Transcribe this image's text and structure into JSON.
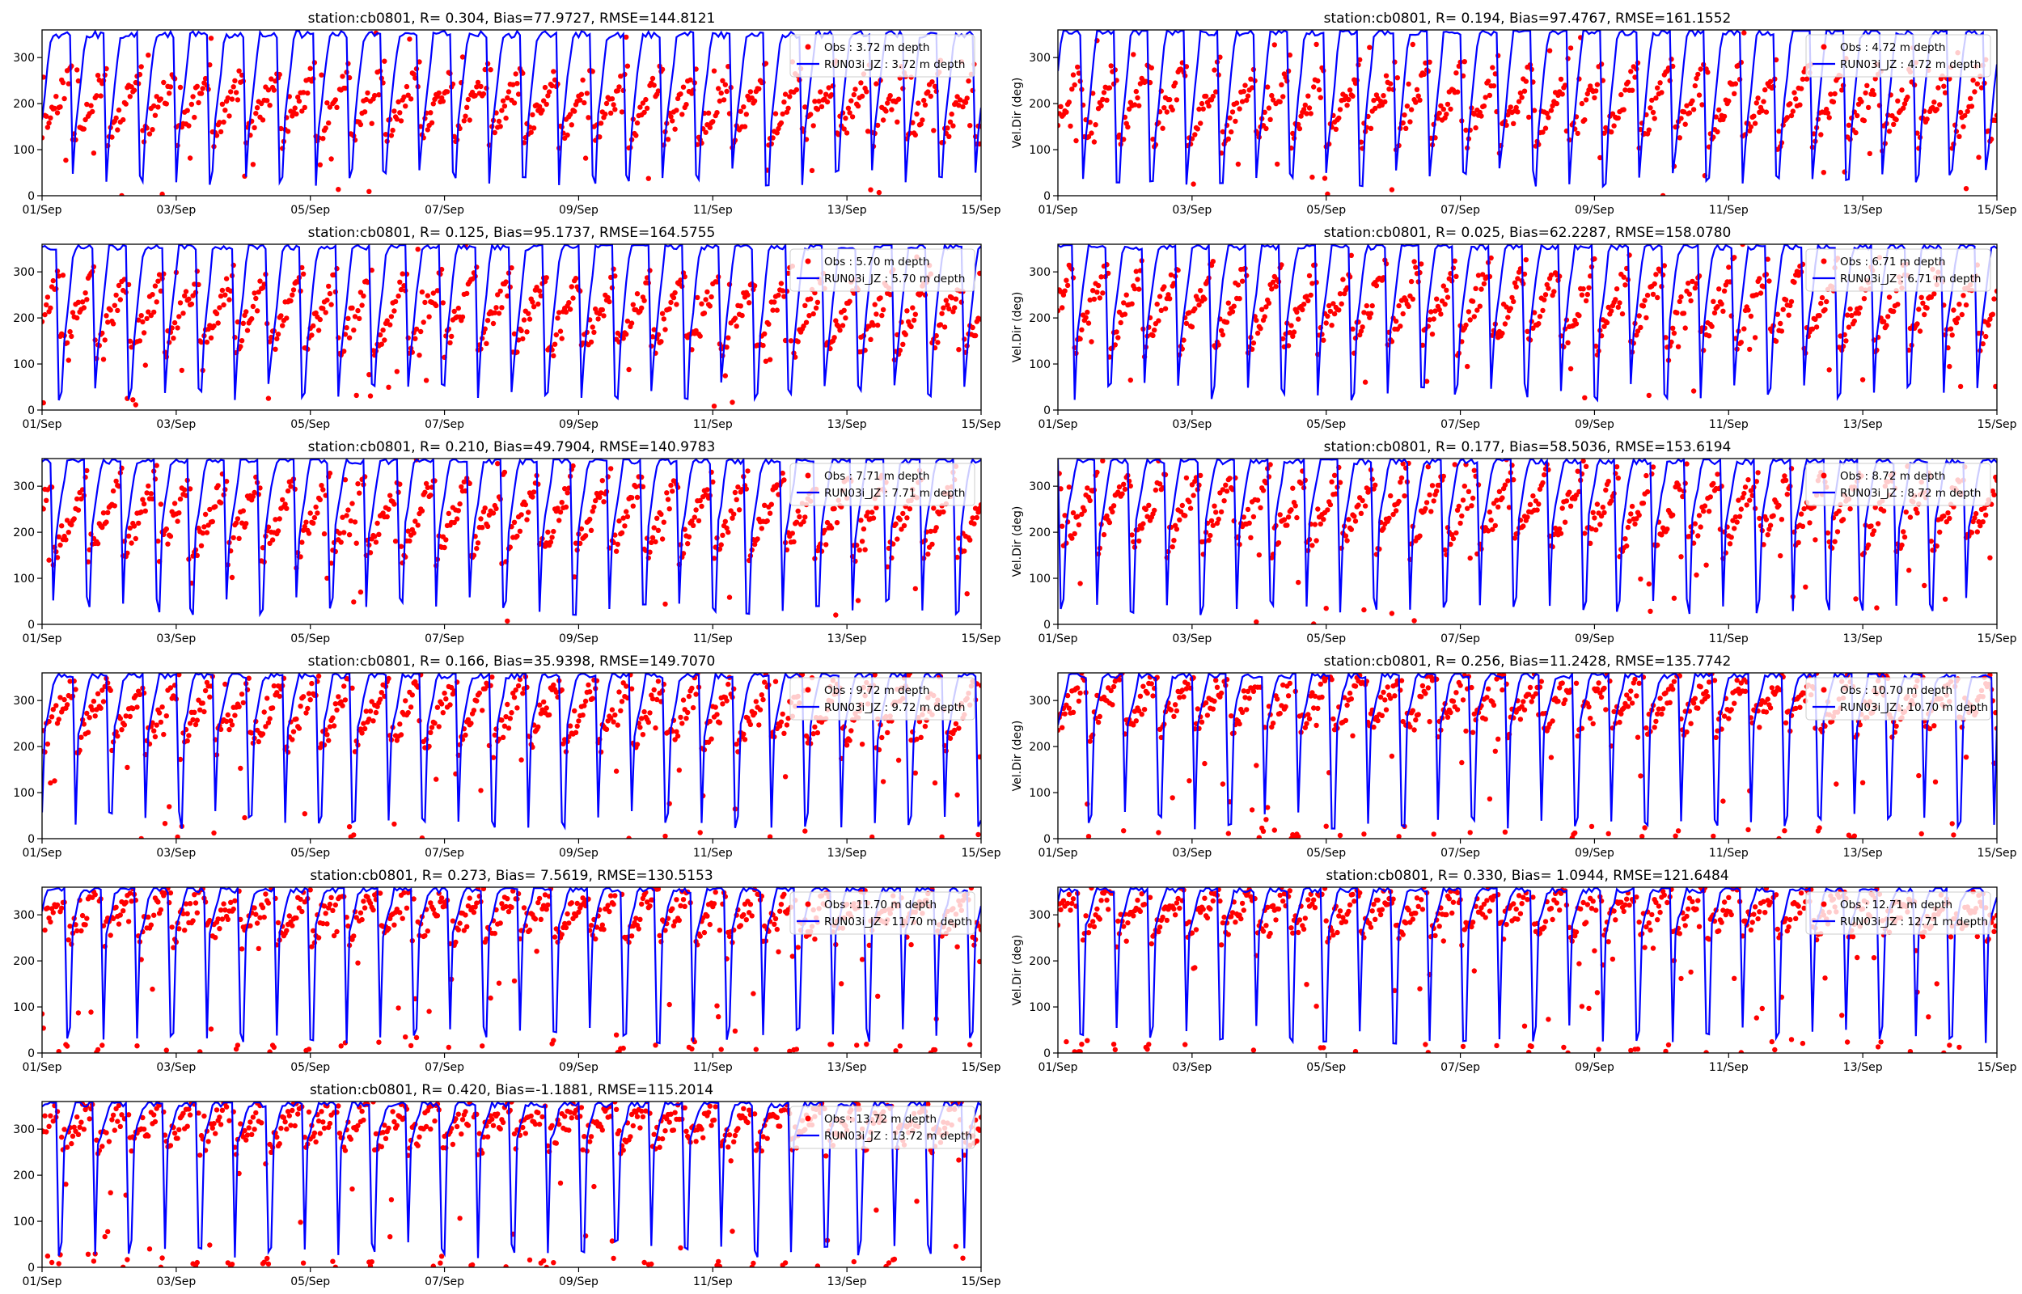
{
  "figure": {
    "colors": {
      "obs": "#ff0000",
      "model": "#0000ff",
      "axis": "#000000",
      "legend_border": "#cccccc"
    }
  },
  "chart_data": [
    {
      "type": "scatter+line",
      "title": "station:cb0801, R= 0.304, Bias=77.9727, RMSE=144.8121",
      "ylabel": "",
      "ylim": [
        0,
        360
      ],
      "yticks": [
        "0",
        "100",
        "200",
        "300"
      ],
      "xticks": [
        "01/Sep",
        "03/Sep",
        "05/Sep",
        "07/Sep",
        "09/Sep",
        "11/Sep",
        "13/Sep",
        "15/Sep"
      ],
      "xlim_days": [
        0,
        14
      ],
      "legend": {
        "placement": "upper right",
        "obs": "Obs : 3.72 m depth",
        "model": "RUN03i_JZ : 3.72 m depth"
      },
      "pattern": {
        "obs_base": 120,
        "obs_amp": 150,
        "model_low": 120,
        "model_high": 350,
        "seed": 11
      }
    },
    {
      "type": "scatter+line",
      "title": "station:cb0801, R= 0.194, Bias=97.4767, RMSE=161.1552",
      "ylabel": "Vel.Dir (deg)",
      "ylim": [
        0,
        360
      ],
      "yticks": [
        "0",
        "100",
        "200",
        "300"
      ],
      "xticks": [
        "01/Sep",
        "03/Sep",
        "05/Sep",
        "07/Sep",
        "09/Sep",
        "11/Sep",
        "13/Sep",
        "15/Sep"
      ],
      "xlim_days": [
        0,
        14
      ],
      "legend": {
        "placement": "upper right",
        "obs": "Obs : 4.72 m depth",
        "model": "RUN03i_JZ : 4.72 m depth"
      },
      "pattern": {
        "obs_base": 120,
        "obs_amp": 160,
        "model_low": 100,
        "model_high": 355,
        "seed": 23
      }
    },
    {
      "type": "scatter+line",
      "title": "station:cb0801, R= 0.125, Bias=95.1737, RMSE=164.5755",
      "ylabel": "",
      "ylim": [
        0,
        360
      ],
      "yticks": [
        "0",
        "100",
        "200",
        "300"
      ],
      "xticks": [
        "01/Sep",
        "03/Sep",
        "05/Sep",
        "07/Sep",
        "09/Sep",
        "11/Sep",
        "13/Sep",
        "15/Sep"
      ],
      "xlim_days": [
        0,
        14
      ],
      "legend": {
        "placement": "upper right",
        "obs": "Obs : 5.70 m depth",
        "model": "RUN03i_JZ : 5.70 m depth"
      },
      "pattern": {
        "obs_base": 130,
        "obs_amp": 160,
        "model_low": 110,
        "model_high": 355,
        "seed": 37
      }
    },
    {
      "type": "scatter+line",
      "title": "station:cb0801, R= 0.025, Bias=62.2287, RMSE=158.0780",
      "ylabel": "Vel.Dir (deg)",
      "ylim": [
        0,
        360
      ],
      "yticks": [
        "0",
        "100",
        "200",
        "300"
      ],
      "xticks": [
        "01/Sep",
        "03/Sep",
        "05/Sep",
        "07/Sep",
        "09/Sep",
        "11/Sep",
        "13/Sep",
        "15/Sep"
      ],
      "xlim_days": [
        0,
        14
      ],
      "legend": {
        "placement": "upper right",
        "obs": "Obs : 6.71 m depth",
        "model": "RUN03i_JZ : 6.71 m depth"
      },
      "pattern": {
        "obs_base": 140,
        "obs_amp": 170,
        "model_low": 150,
        "model_high": 355,
        "seed": 41
      }
    },
    {
      "type": "scatter+line",
      "title": "station:cb0801, R= 0.210, Bias=49.7904, RMSE=140.9783",
      "ylabel": "",
      "ylim": [
        0,
        360
      ],
      "yticks": [
        "0",
        "100",
        "200",
        "300"
      ],
      "xticks": [
        "01/Sep",
        "03/Sep",
        "05/Sep",
        "07/Sep",
        "09/Sep",
        "11/Sep",
        "13/Sep",
        "15/Sep"
      ],
      "xlim_days": [
        0,
        14
      ],
      "legend": {
        "placement": "upper right",
        "obs": "Obs : 7.71 m depth",
        "model": "RUN03i_JZ : 7.71 m depth"
      },
      "pattern": {
        "obs_base": 150,
        "obs_amp": 170,
        "model_low": 180,
        "model_high": 355,
        "seed": 53
      }
    },
    {
      "type": "scatter+line",
      "title": "station:cb0801, R= 0.177, Bias=58.5036, RMSE=153.6194",
      "ylabel": "Vel.Dir (deg)",
      "ylim": [
        0,
        360
      ],
      "yticks": [
        "0",
        "100",
        "200",
        "300"
      ],
      "xticks": [
        "01/Sep",
        "03/Sep",
        "05/Sep",
        "07/Sep",
        "09/Sep",
        "11/Sep",
        "13/Sep",
        "15/Sep"
      ],
      "xlim_days": [
        0,
        14
      ],
      "legend": {
        "placement": "upper right",
        "obs": "Obs : 8.72 m depth",
        "model": "RUN03i_JZ : 8.72 m depth"
      },
      "pattern": {
        "obs_base": 170,
        "obs_amp": 160,
        "model_low": 200,
        "model_high": 355,
        "seed": 67
      }
    },
    {
      "type": "scatter+line",
      "title": "station:cb0801, R= 0.166, Bias=35.9398, RMSE=149.7070",
      "ylabel": "",
      "ylim": [
        0,
        360
      ],
      "yticks": [
        "0",
        "100",
        "200",
        "300"
      ],
      "xticks": [
        "01/Sep",
        "03/Sep",
        "05/Sep",
        "07/Sep",
        "09/Sep",
        "11/Sep",
        "13/Sep",
        "15/Sep"
      ],
      "xlim_days": [
        0,
        14
      ],
      "legend": {
        "placement": "upper right",
        "obs": "Obs : 9.72 m depth",
        "model": "RUN03i_JZ : 9.72 m depth"
      },
      "pattern": {
        "obs_base": 200,
        "obs_amp": 150,
        "model_low": 220,
        "model_high": 355,
        "seed": 79
      }
    },
    {
      "type": "scatter+line",
      "title": "station:cb0801, R= 0.256, Bias=11.2428, RMSE=135.7742",
      "ylabel": "Vel.Dir (deg)",
      "ylim": [
        0,
        360
      ],
      "yticks": [
        "0",
        "100",
        "200",
        "300"
      ],
      "xticks": [
        "01/Sep",
        "03/Sep",
        "05/Sep",
        "07/Sep",
        "09/Sep",
        "11/Sep",
        "13/Sep",
        "15/Sep"
      ],
      "xlim_days": [
        0,
        14
      ],
      "legend": {
        "placement": "upper right",
        "obs": "Obs : 10.70 m depth",
        "model": "RUN03i_JZ : 10.70 m depth"
      },
      "pattern": {
        "obs_base": 240,
        "obs_amp": 120,
        "model_low": 240,
        "model_high": 355,
        "seed": 83
      }
    },
    {
      "type": "scatter+line",
      "title": "station:cb0801, R= 0.273, Bias= 7.5619, RMSE=130.5153",
      "ylabel": "",
      "ylim": [
        0,
        360
      ],
      "yticks": [
        "0",
        "100",
        "200",
        "300"
      ],
      "xticks": [
        "01/Sep",
        "03/Sep",
        "05/Sep",
        "07/Sep",
        "09/Sep",
        "11/Sep",
        "13/Sep",
        "15/Sep"
      ],
      "xlim_days": [
        0,
        14
      ],
      "legend": {
        "placement": "upper right",
        "obs": "Obs : 11.70 m depth",
        "model": "RUN03i_JZ : 11.70 m depth"
      },
      "pattern": {
        "obs_base": 250,
        "obs_amp": 110,
        "model_low": 250,
        "model_high": 355,
        "seed": 97
      }
    },
    {
      "type": "scatter+line",
      "title": "station:cb0801, R= 0.330, Bias= 1.0944, RMSE=121.6484",
      "ylabel": "Vel.Dir (deg)",
      "ylim": [
        0,
        360
      ],
      "yticks": [
        "0",
        "100",
        "200",
        "300"
      ],
      "xticks": [
        "01/Sep",
        "03/Sep",
        "05/Sep",
        "07/Sep",
        "09/Sep",
        "11/Sep",
        "13/Sep",
        "15/Sep"
      ],
      "xlim_days": [
        0,
        14
      ],
      "legend": {
        "placement": "upper right",
        "obs": "Obs : 12.71 m depth",
        "model": "RUN03i_JZ : 12.71 m depth"
      },
      "pattern": {
        "obs_base": 260,
        "obs_amp": 100,
        "model_low": 260,
        "model_high": 355,
        "seed": 101
      }
    },
    {
      "type": "scatter+line",
      "title": "station:cb0801, R= 0.420, Bias=-1.1881, RMSE=115.2014",
      "ylabel": "",
      "ylim": [
        0,
        360
      ],
      "yticks": [
        "0",
        "100",
        "200",
        "300"
      ],
      "xticks": [
        "01/Sep",
        "03/Sep",
        "05/Sep",
        "07/Sep",
        "09/Sep",
        "11/Sep",
        "13/Sep",
        "15/Sep"
      ],
      "xlim_days": [
        0,
        14
      ],
      "legend": {
        "placement": "upper right",
        "obs": "Obs : 13.72 m depth",
        "model": "RUN03i_JZ : 13.72 m depth"
      },
      "pattern": {
        "obs_base": 265,
        "obs_amp": 95,
        "model_low": 265,
        "model_high": 355,
        "seed": 113
      }
    }
  ]
}
